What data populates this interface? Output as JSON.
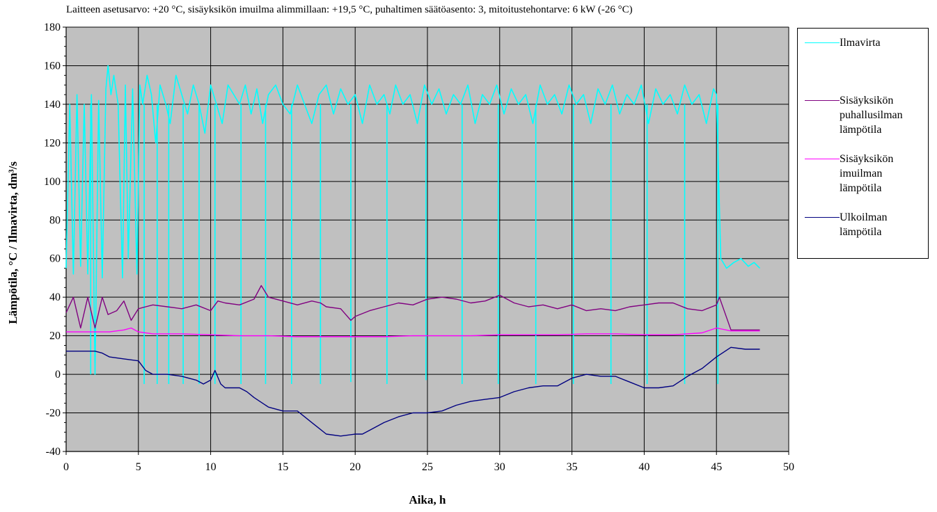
{
  "figure": {
    "title": "Laitteen asetusarvo: +20 °C, sisäyksikön imuilma alimmillaan: +19,5 °C, puhaltimen säätöasento: 3, mitoitustehontarve: 6 kW (-26 °C)"
  },
  "chart_data": {
    "type": "line",
    "title": "Laitteen asetusarvo: +20 °C, sisäyksikön imuilma alimmillaan: +19,5 °C, puhaltimen säätöasento: 3, mitoitustehontarve: 6 kW (-26 °C)",
    "xlabel": "Aika, h",
    "ylabel": "Lämpötila, °C / Ilmavirta, dm³/s",
    "xlim": [
      0,
      50
    ],
    "ylim": [
      -40,
      180
    ],
    "xticks": [
      0,
      5,
      10,
      15,
      20,
      25,
      30,
      35,
      40,
      45,
      50
    ],
    "yticks": [
      -40,
      -20,
      0,
      20,
      40,
      60,
      80,
      100,
      120,
      140,
      160,
      180
    ],
    "grid": true,
    "plot_background": "#c0c0c0",
    "legend_position": "right",
    "series": [
      {
        "name": "Ilmavirta",
        "color": "#00ffff",
        "x": [
          0,
          0.25,
          0.5,
          0.75,
          1.0,
          1.25,
          1.5,
          1.75,
          2.0,
          2.25,
          2.5,
          2.75,
          2.9,
          3.1,
          3.3,
          3.6,
          3.9,
          4.1,
          4.3,
          4.6,
          4.9,
          5.1,
          5.3,
          5.6,
          5.9,
          6.2,
          6.5,
          6.9,
          7.2,
          7.6,
          8.0,
          8.4,
          8.8,
          9.2,
          9.6,
          10.0,
          10.4,
          10.8,
          11.2,
          11.6,
          12.0,
          12.4,
          12.8,
          13.2,
          13.6,
          14.0,
          14.5,
          15.0,
          15.5,
          16.0,
          16.5,
          17.0,
          17.5,
          18.0,
          18.5,
          19.0,
          19.5,
          20.0,
          20.5,
          21.0,
          21.5,
          22.0,
          22.4,
          22.8,
          23.3,
          23.8,
          24.3,
          24.8,
          25.3,
          25.8,
          26.3,
          26.8,
          27.3,
          27.8,
          28.3,
          28.8,
          29.3,
          29.8,
          30.3,
          30.8,
          31.3,
          31.8,
          32.3,
          32.8,
          33.3,
          33.8,
          34.3,
          34.8,
          35.3,
          35.8,
          36.3,
          36.8,
          37.3,
          37.8,
          38.3,
          38.8,
          39.3,
          39.8,
          40.3,
          40.8,
          41.3,
          41.8,
          42.3,
          42.8,
          43.3,
          43.8,
          44.3,
          44.8,
          45.0,
          45.3,
          45.7,
          46.2,
          46.7,
          47.2,
          47.6,
          48.0
        ],
        "y": [
          55,
          140,
          52,
          145,
          56,
          140,
          52,
          145,
          0,
          142,
          50,
          148,
          160,
          145,
          155,
          140,
          50,
          150,
          60,
          148,
          52,
          150,
          140,
          155,
          145,
          120,
          150,
          140,
          130,
          155,
          145,
          135,
          150,
          140,
          125,
          150,
          140,
          130,
          150,
          145,
          140,
          150,
          135,
          148,
          130,
          145,
          150,
          140,
          135,
          150,
          140,
          130,
          145,
          150,
          135,
          148,
          140,
          145,
          130,
          150,
          140,
          145,
          135,
          150,
          140,
          145,
          130,
          150,
          140,
          148,
          135,
          145,
          140,
          150,
          130,
          145,
          140,
          150,
          135,
          148,
          140,
          145,
          130,
          150,
          140,
          145,
          135,
          150,
          140,
          145,
          130,
          148,
          140,
          150,
          135,
          145,
          140,
          150,
          130,
          148,
          140,
          145,
          135,
          150,
          140,
          145,
          130,
          148,
          145,
          60,
          55,
          58,
          60,
          56,
          58,
          55
        ],
        "dips_to": [
          [
            1.7,
            0
          ],
          [
            5.4,
            -5
          ],
          [
            6.3,
            -5
          ],
          [
            7.1,
            -5
          ],
          [
            8.1,
            -5
          ],
          [
            9.2,
            -5
          ],
          [
            10.3,
            -5
          ],
          [
            12.1,
            -5
          ],
          [
            13.8,
            -5
          ],
          [
            15.6,
            -5
          ],
          [
            17.6,
            -5
          ],
          [
            19.7,
            -4
          ],
          [
            22.2,
            -5
          ],
          [
            24.9,
            -3
          ],
          [
            27.4,
            -5
          ],
          [
            29.9,
            -5
          ],
          [
            32.5,
            -5
          ],
          [
            35.1,
            -5
          ],
          [
            37.7,
            -5
          ],
          [
            40.2,
            -5
          ],
          [
            42.8,
            -5
          ],
          [
            45.1,
            -5
          ]
        ]
      },
      {
        "name": "Sisäyksikön\npuhallusilman\nlämpötila",
        "color": "#800080",
        "x": [
          0,
          0.5,
          1.0,
          1.5,
          2.0,
          2.5,
          2.9,
          3.5,
          4.0,
          4.5,
          5.0,
          5.5,
          6.0,
          7.0,
          8.0,
          9.0,
          10.0,
          10.5,
          11.0,
          12.0,
          13.0,
          13.5,
          14.0,
          15.0,
          16.0,
          17.0,
          17.6,
          18.0,
          19.0,
          19.7,
          20.0,
          21.0,
          22.0,
          23.0,
          24.0,
          25.0,
          26.0,
          27.0,
          28.0,
          29.0,
          30.0,
          31.0,
          32.0,
          33.0,
          34.0,
          35.0,
          36.0,
          37.0,
          38.0,
          39.0,
          40.0,
          41.0,
          42.0,
          43.0,
          44.0,
          45.0,
          45.2,
          46.0,
          47.0,
          48.0
        ],
        "y": [
          32,
          40,
          24,
          40,
          24,
          40,
          31,
          33,
          38,
          28,
          34,
          35,
          36,
          35,
          34,
          36,
          33,
          38,
          37,
          36,
          39,
          46,
          40,
          38,
          36,
          38,
          37,
          35,
          34,
          28,
          30,
          33,
          35,
          37,
          36,
          39,
          40,
          39,
          37,
          38,
          41,
          37,
          35,
          36,
          34,
          36,
          33,
          34,
          33,
          35,
          36,
          37,
          37,
          34,
          33,
          36,
          40,
          23,
          23,
          23
        ]
      },
      {
        "name": "Sisäyksikön\nimuilman\nlämpötila",
        "color": "#ff00ff",
        "x": [
          0,
          2,
          3,
          4,
          4.5,
          5,
          6,
          8,
          10,
          12,
          14,
          16,
          18,
          20,
          22,
          24,
          26,
          28,
          30,
          32,
          34,
          36,
          38,
          40,
          42,
          44,
          45,
          46,
          48
        ],
        "y": [
          22,
          22,
          22,
          23,
          24,
          22,
          21,
          21,
          20.5,
          20,
          20,
          19.5,
          19.5,
          19.5,
          19.5,
          20,
          20,
          20,
          20.5,
          20.5,
          20.5,
          21,
          21,
          20.5,
          20.5,
          21.5,
          24,
          22.5,
          22.5
        ]
      },
      {
        "name": "Ulkoilman\nlämpötila",
        "color": "#000080",
        "x": [
          0,
          1,
          2,
          2.5,
          3,
          4,
          5,
          5.5,
          6,
          7,
          8,
          9,
          9.5,
          10,
          10.3,
          10.7,
          11,
          12,
          12.5,
          13,
          14,
          15,
          15.5,
          16,
          16.5,
          17,
          17.5,
          18,
          19,
          20,
          20.5,
          21,
          22,
          23,
          24,
          25,
          26,
          27,
          28,
          29,
          30,
          31,
          32,
          33,
          34,
          35,
          36,
          37,
          38,
          39,
          40,
          41,
          42,
          43,
          44,
          45,
          46,
          47,
          48
        ],
        "y": [
          12,
          12,
          12,
          11,
          9,
          8,
          7,
          2,
          0,
          0,
          -1,
          -3,
          -5,
          -3,
          2,
          -5,
          -7,
          -7,
          -9,
          -12,
          -17,
          -19,
          -19,
          -19,
          -22,
          -25,
          -28,
          -31,
          -32,
          -31,
          -31,
          -29,
          -25,
          -22,
          -20,
          -20,
          -19,
          -16,
          -14,
          -13,
          -12,
          -9,
          -7,
          -6,
          -6,
          -2,
          0,
          -1,
          -1,
          -4,
          -7,
          -7,
          -6,
          -1,
          3,
          9,
          14,
          13,
          13
        ]
      }
    ]
  }
}
